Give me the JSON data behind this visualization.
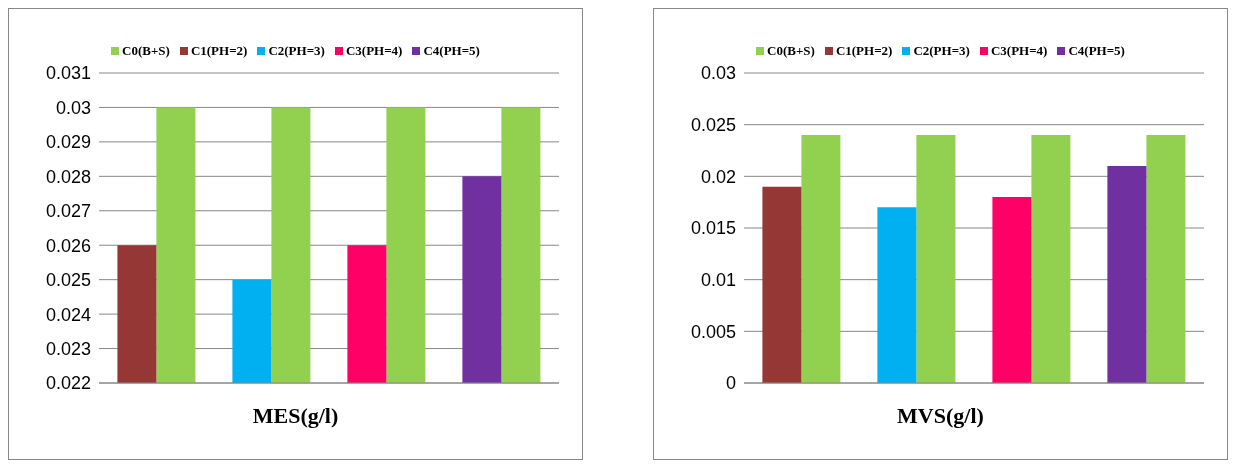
{
  "chart_data": [
    {
      "type": "bar",
      "xlabel": "MES(g/l)",
      "categories": [
        null,
        null,
        null,
        null
      ],
      "series": [
        {
          "name": "C0(B+S)",
          "color": "#92d050",
          "values": [
            0.03,
            0.03,
            0.03,
            0.03
          ]
        },
        {
          "name": "C1(PH=2)",
          "color": "#953735",
          "values": [
            0.026,
            null,
            null,
            null
          ]
        },
        {
          "name": "C2(PH=3)",
          "color": "#00b0f0",
          "values": [
            null,
            0.025,
            null,
            null
          ]
        },
        {
          "name": "C3(PH=4)",
          "color": "#ff0066",
          "values": [
            null,
            null,
            0.026,
            null
          ]
        },
        {
          "name": "C4(PH=5)",
          "color": "#7030a0",
          "values": [
            null,
            null,
            null,
            0.028
          ]
        }
      ],
      "ylim": [
        0.022,
        0.031
      ],
      "yticks": [
        0.022,
        0.023,
        0.024,
        0.025,
        0.026,
        0.027,
        0.028,
        0.029,
        0.03,
        0.031
      ],
      "grid": "y",
      "legend": "top"
    },
    {
      "type": "bar",
      "xlabel": "MVS(g/l)",
      "categories": [
        null,
        null,
        null,
        null
      ],
      "series": [
        {
          "name": "C0(B+S)",
          "color": "#92d050",
          "values": [
            0.024,
            0.024,
            0.024,
            0.024
          ]
        },
        {
          "name": "C1(PH=2)",
          "color": "#953735",
          "values": [
            0.019,
            null,
            null,
            null
          ]
        },
        {
          "name": "C2(PH=3)",
          "color": "#00b0f0",
          "values": [
            null,
            0.017,
            null,
            null
          ]
        },
        {
          "name": "C3(PH=4)",
          "color": "#ff0066",
          "values": [
            null,
            null,
            0.018,
            null
          ]
        },
        {
          "name": "C4(PH=5)",
          "color": "#7030a0",
          "values": [
            null,
            null,
            null,
            0.021
          ]
        }
      ],
      "ylim": [
        0,
        0.03
      ],
      "yticks": [
        0,
        0.005,
        0.01,
        0.015,
        0.02,
        0.025,
        0.03
      ],
      "grid": "y",
      "legend": "top"
    }
  ]
}
